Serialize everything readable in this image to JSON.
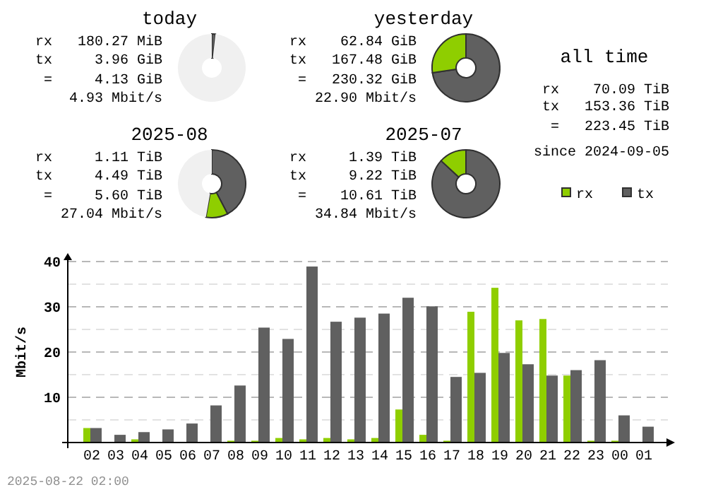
{
  "chart_data": [
    {
      "type": "donut",
      "title": "today",
      "categories": [
        null,
        null
      ],
      "values": [
        1.72,
        98.28
      ],
      "colors": [
        "#606060",
        "#f0f0f0"
      ],
      "annotations": [
        "rx   180.27 MiB",
        "tx     3.96 GiB",
        "=     4.13 GiB",
        "4.93 Mbit/s"
      ]
    },
    {
      "type": "donut",
      "title": "yesterday",
      "categories": [
        null,
        null,
        null
      ],
      "values": [
        72.7,
        27.3,
        0
      ],
      "colors": [
        "#606060",
        "#8fce00",
        "#f0f0f0"
      ],
      "annotations": [
        "rx    62.84 GiB",
        "tx   167.48 GiB",
        "=   230.32 GiB",
        "22.90 Mbit/s"
      ]
    },
    {
      "type": "donut",
      "title": "2025-08",
      "categories": [
        null,
        null,
        null
      ],
      "values": [
        42.3,
        10.5,
        47.2
      ],
      "colors": [
        "#606060",
        "#8fce00",
        "#f0f0f0"
      ],
      "annotations": [
        "rx     1.11 TiB",
        "tx     4.49 TiB",
        "=     5.60 TiB",
        "27.04 Mbit/s"
      ]
    },
    {
      "type": "donut",
      "title": "2025-07",
      "categories": [
        null,
        null,
        null
      ],
      "values": [
        86.9,
        13.1,
        0
      ],
      "colors": [
        "#606060",
        "#8fce00",
        "#f0f0f0"
      ],
      "annotations": [
        "rx     1.39 TiB",
        "tx     9.22 TiB",
        "=    10.61 TiB",
        "34.84 Mbit/s"
      ]
    },
    {
      "type": "other",
      "title": "all time",
      "annotations": [
        "rx    70.09 TiB",
        "tx   153.36 TiB",
        "=   223.45 TiB",
        "since 2024-09-05"
      ]
    },
    {
      "type": "bar",
      "ylabel": "Mbit/s",
      "categories": [
        "02",
        "03",
        "04",
        "05",
        "06",
        "07",
        "08",
        "09",
        "10",
        "11",
        "12",
        "13",
        "14",
        "15",
        "16",
        "17",
        "18",
        "19",
        "20",
        "21",
        "22",
        "23",
        "00",
        "01"
      ],
      "series": [
        {
          "name": "rx",
          "color": "#8fce00",
          "values": [
            3.2,
            0,
            0.7,
            0,
            0,
            0,
            0.4,
            0.4,
            1.0,
            0.7,
            1.0,
            0.7,
            1.0,
            7.3,
            1.7,
            0.4,
            28.9,
            34.2,
            27.0,
            27.3,
            14.8,
            0.4,
            0.4,
            0
          ]
        },
        {
          "name": "tx",
          "color": "#606060",
          "values": [
            3.2,
            1.7,
            2.3,
            2.9,
            4.2,
            8.2,
            12.6,
            25.4,
            22.9,
            38.9,
            26.7,
            27.6,
            28.5,
            32.0,
            30.1,
            14.5,
            15.4,
            19.8,
            17.3,
            14.8,
            16.0,
            18.2,
            6.0,
            3.5
          ]
        }
      ],
      "ylim": [
        0,
        40
      ],
      "yticks": [
        {
          "value": 0,
          "label": null
        },
        {
          "value": 5,
          "label": null
        },
        10,
        {
          "value": 15,
          "label": null
        },
        20,
        {
          "value": 25,
          "label": null
        },
        30,
        {
          "value": 35,
          "label": null
        },
        40
      ],
      "grid": "y",
      "legend": "top right",
      "annotations": [
        "2025-08-22 02:00"
      ]
    }
  ]
}
